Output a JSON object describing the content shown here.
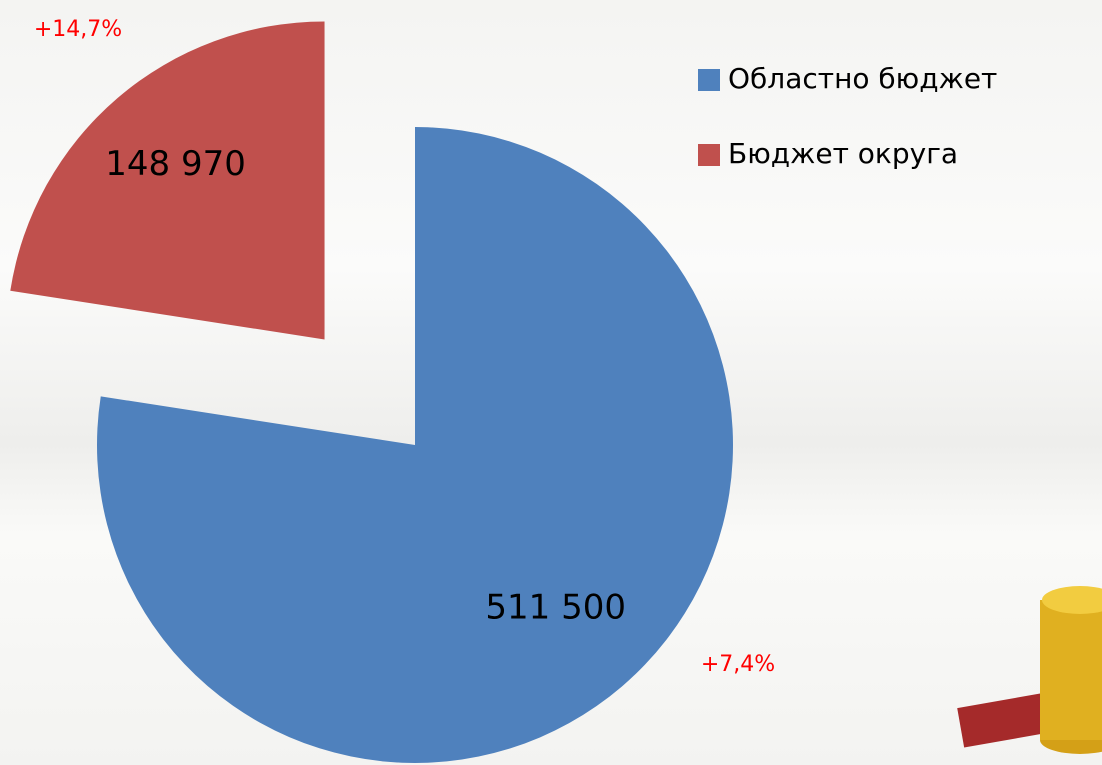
{
  "chart_data": {
    "type": "pie",
    "categories": [
      "Областно бюджет",
      "Бюджет округа"
    ],
    "values": [
      511500,
      148970
    ],
    "value_labels": [
      "511 500",
      "148 970"
    ],
    "colors": [
      "#4f81bd",
      "#c0504d"
    ],
    "exploded": [
      false,
      true
    ],
    "annotations": [
      "+7,4%",
      "+14,7%"
    ],
    "annotation_color": "#ff0000",
    "legend": "top-right"
  }
}
